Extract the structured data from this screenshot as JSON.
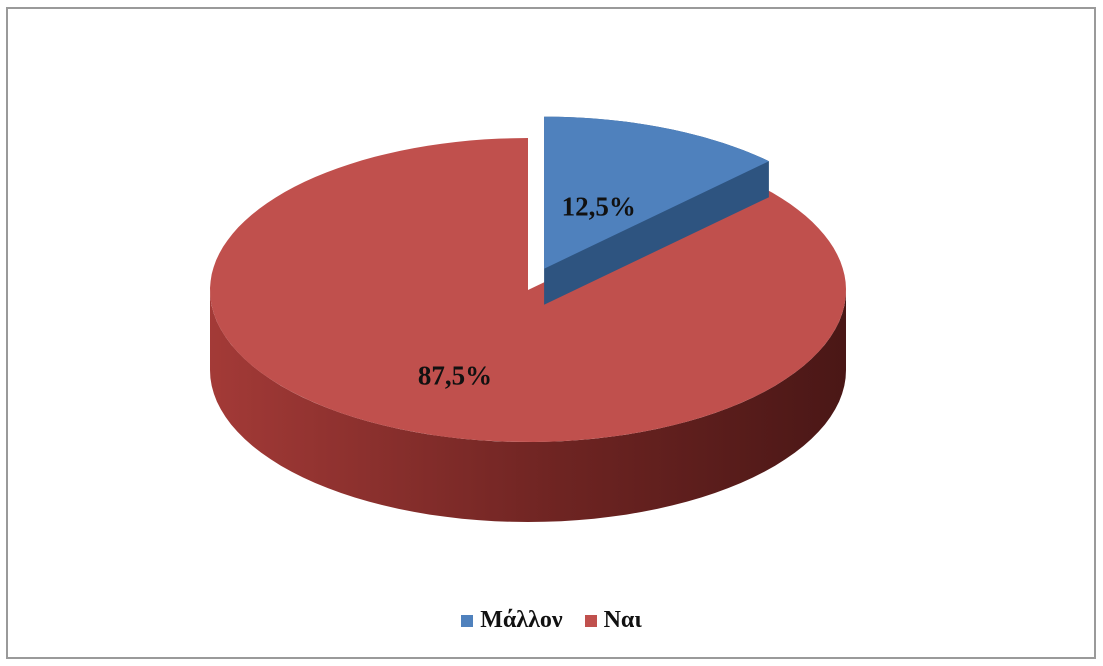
{
  "chart_data": {
    "type": "pie",
    "title": "",
    "categories": [
      "Μάλλον",
      "Ναι"
    ],
    "values": [
      12.5,
      87.5
    ],
    "data_labels": [
      "12,5%",
      "87,5%"
    ],
    "colors": [
      "#4f81bd",
      "#c0504d"
    ],
    "legend_position": "bottom",
    "style": "3d-exploded"
  },
  "legend": {
    "items": [
      {
        "label": "Μάλλον",
        "color": "#4f81bd"
      },
      {
        "label": "Ναι",
        "color": "#c0504d"
      }
    ]
  }
}
